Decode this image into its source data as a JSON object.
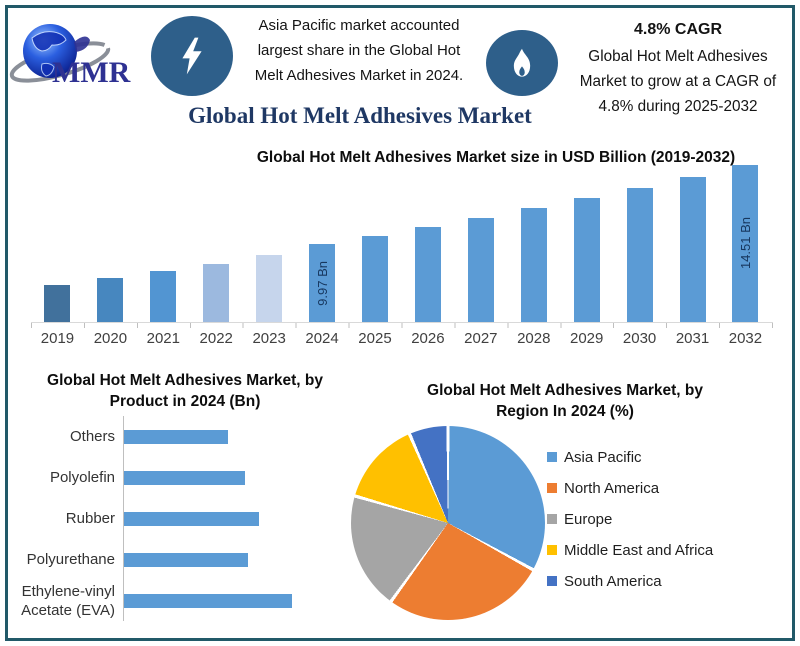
{
  "page": {
    "border_color": "#215968",
    "background": "#ffffff",
    "accent_navy": "#1F3864",
    "badge_color": "#2E5F8A"
  },
  "header": {
    "logo_text": "MMR",
    "icons": {
      "left": "lightning-icon",
      "right": "flame-icon",
      "logo": "globe-logo"
    },
    "highlight": {
      "lines": [
        "Asia Pacific market accounted",
        "largest share in the Global Hot",
        "Melt Adhesives Market in 2024."
      ]
    },
    "cagr": {
      "title": "4.8% CAGR",
      "lines": [
        "Global Hot Melt Adhesives",
        "Market to grow at a CAGR of",
        "4.8% during 2025-2032"
      ]
    }
  },
  "main_title": "Global Hot Melt Adhesives Market",
  "chart_data": [
    {
      "type": "bar",
      "title": "Global Hot Melt Adhesives Market size in USD Billion (2019-2032)",
      "categories": [
        "2019",
        "2020",
        "2021",
        "2022",
        "2023",
        "2024",
        "2025",
        "2026",
        "2027",
        "2028",
        "2029",
        "2030",
        "2031",
        "2032"
      ],
      "values": [
        7.6,
        8.0,
        8.4,
        8.85,
        9.35,
        9.97,
        10.45,
        10.95,
        11.47,
        12.02,
        12.6,
        13.21,
        13.84,
        14.51
      ],
      "bar_labels": {
        "2024": "9.97 Bn",
        "2032": "14.51 Bn"
      },
      "bar_colors": [
        "#41719C",
        "#4787BF",
        "#5295D2",
        "#9CB9DF",
        "#C6D5EC",
        "#5B9BD5",
        "#5B9BD5",
        "#5B9BD5",
        "#5B9BD5",
        "#5B9BD5",
        "#5B9BD5",
        "#5B9BD5",
        "#5B9BD5",
        "#5B9BD5"
      ],
      "xlabel": "",
      "ylabel": "USD Billion",
      "ylim": [
        5.5,
        14.8
      ],
      "grid": false,
      "legend_position": "none"
    },
    {
      "type": "bar",
      "orientation": "horizontal",
      "title": "Global Hot Melt Adhesives Market, by Product in 2024 (Bn)",
      "categories": [
        "Others",
        "Polyolefin",
        "Rubber",
        "Polyurethane",
        "Ethylene-vinyl Acetate (EVA)"
      ],
      "values": [
        1.55,
        1.8,
        2.0,
        1.85,
        2.5
      ],
      "xlim": [
        0,
        2.75
      ],
      "bar_color": "#5B9BD5",
      "grid": false,
      "legend_position": "none"
    },
    {
      "type": "pie",
      "title": "Global Hot Melt Adhesives Market, by Region In 2024 (%)",
      "labels": [
        "Asia Pacific",
        "North America",
        "Europe",
        "Middle East and Africa",
        "South America"
      ],
      "values": [
        33,
        27,
        19.5,
        14,
        6.5
      ],
      "colors": [
        "#5B9BD5",
        "#ED7D31",
        "#A5A5A5",
        "#FFC000",
        "#4472C4"
      ],
      "start_angle": 0,
      "legend_position": "right"
    }
  ]
}
